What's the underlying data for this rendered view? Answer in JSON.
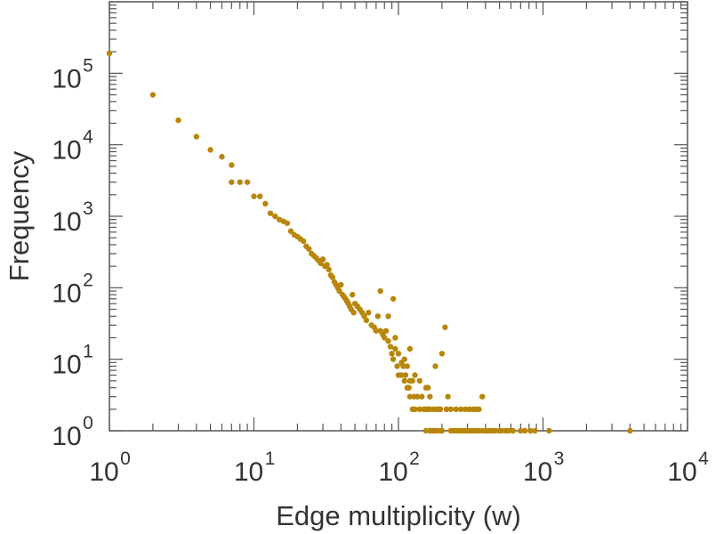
{
  "chart_data": {
    "type": "scatter",
    "xlabel": "Edge multiplicity (w)",
    "ylabel": "Frequency",
    "x_scale": "log",
    "y_scale": "log",
    "xlim": [
      1,
      10000
    ],
    "ylim": [
      1,
      1000000
    ],
    "x_tick_labels": [
      {
        "base": "10",
        "exp": "0"
      },
      {
        "base": "10",
        "exp": "1"
      },
      {
        "base": "10",
        "exp": "2"
      },
      {
        "base": "10",
        "exp": "3"
      },
      {
        "base": "10",
        "exp": "4"
      }
    ],
    "y_tick_labels": [
      {
        "base": "10",
        "exp": "0"
      },
      {
        "base": "10",
        "exp": "1"
      },
      {
        "base": "10",
        "exp": "2"
      },
      {
        "base": "10",
        "exp": "3"
      },
      {
        "base": "10",
        "exp": "4"
      },
      {
        "base": "10",
        "exp": "5"
      }
    ],
    "grid": false,
    "marker_color": "#b8860b",
    "points": [
      [
        1,
        190000
      ],
      [
        2,
        50000
      ],
      [
        3,
        22000
      ],
      [
        4,
        13000
      ],
      [
        5,
        8500
      ],
      [
        6,
        6800
      ],
      [
        7,
        5200
      ],
      [
        8,
        3000
      ],
      [
        9,
        3000
      ],
      [
        10,
        1900
      ],
      [
        11,
        1900
      ],
      [
        12,
        1500
      ],
      [
        13,
        1100
      ],
      [
        14,
        1000
      ],
      [
        15,
        900
      ],
      [
        16,
        850
      ],
      [
        17,
        800
      ],
      [
        18,
        620
      ],
      [
        19,
        550
      ],
      [
        20,
        520
      ],
      [
        21,
        480
      ],
      [
        22,
        450
      ],
      [
        23,
        380
      ],
      [
        24,
        350
      ],
      [
        25,
        300
      ],
      [
        26,
        280
      ],
      [
        27,
        260
      ],
      [
        28,
        240
      ],
      [
        29,
        220
      ],
      [
        30,
        250
      ],
      [
        31,
        200
      ],
      [
        32,
        210
      ],
      [
        33,
        180
      ],
      [
        34,
        150
      ],
      [
        35,
        140
      ],
      [
        36,
        120
      ],
      [
        37,
        110
      ],
      [
        38,
        100
      ],
      [
        39,
        90
      ],
      [
        40,
        110
      ],
      [
        41,
        80
      ],
      [
        42,
        75
      ],
      [
        43,
        70
      ],
      [
        44,
        65
      ],
      [
        45,
        60
      ],
      [
        46,
        55
      ],
      [
        47,
        50
      ],
      [
        48,
        80
      ],
      [
        49,
        45
      ],
      [
        50,
        60
      ],
      [
        52,
        55
      ],
      [
        54,
        50
      ],
      [
        56,
        45
      ],
      [
        58,
        40
      ],
      [
        60,
        35
      ],
      [
        62,
        45
      ],
      [
        65,
        30
      ],
      [
        68,
        28
      ],
      [
        70,
        25
      ],
      [
        72,
        40
      ],
      [
        75,
        25
      ],
      [
        78,
        22
      ],
      [
        80,
        20
      ],
      [
        82,
        25
      ],
      [
        85,
        18
      ],
      [
        88,
        15
      ],
      [
        90,
        12
      ],
      [
        92,
        10
      ],
      [
        95,
        20
      ],
      [
        98,
        8
      ],
      [
        100,
        6
      ],
      [
        100,
        12
      ],
      [
        105,
        6
      ],
      [
        108,
        8
      ],
      [
        110,
        5
      ],
      [
        112,
        6
      ],
      [
        115,
        4
      ],
      [
        118,
        4
      ],
      [
        120,
        3
      ],
      [
        120,
        5
      ],
      [
        125,
        2
      ],
      [
        128,
        3
      ],
      [
        130,
        2
      ],
      [
        135,
        3
      ],
      [
        140,
        2
      ],
      [
        145,
        3
      ],
      [
        150,
        2
      ],
      [
        155,
        4
      ],
      [
        160,
        2
      ],
      [
        165,
        3
      ],
      [
        170,
        1
      ],
      [
        180,
        1
      ],
      [
        190,
        2
      ],
      [
        200,
        1
      ],
      [
        210,
        28
      ],
      [
        215,
        2
      ],
      [
        220,
        3
      ],
      [
        240,
        1
      ],
      [
        260,
        1
      ],
      [
        280,
        1
      ],
      [
        300,
        1
      ],
      [
        320,
        1
      ],
      [
        350,
        1
      ],
      [
        380,
        3
      ],
      [
        410,
        1
      ],
      [
        450,
        1
      ],
      [
        500,
        1
      ],
      [
        580,
        1
      ],
      [
        620,
        1
      ],
      [
        700,
        1
      ],
      [
        750,
        1
      ],
      [
        820,
        1
      ],
      [
        880,
        1
      ],
      [
        1100,
        1
      ],
      [
        4000,
        1
      ],
      [
        7,
        3000
      ],
      [
        75,
        90
      ],
      [
        85,
        40
      ],
      [
        92,
        70
      ],
      [
        95,
        14
      ],
      [
        105,
        9
      ],
      [
        110,
        10
      ],
      [
        115,
        8
      ],
      [
        120,
        14
      ],
      [
        125,
        5
      ],
      [
        130,
        6
      ],
      [
        140,
        5
      ],
      [
        160,
        4
      ],
      [
        180,
        8
      ],
      [
        200,
        12
      ],
      [
        150,
        2
      ],
      [
        155,
        2
      ],
      [
        165,
        2
      ],
      [
        175,
        2
      ],
      [
        185,
        2
      ],
      [
        195,
        2
      ],
      [
        230,
        2
      ],
      [
        250,
        2
      ],
      [
        270,
        2
      ],
      [
        290,
        2
      ],
      [
        310,
        2
      ],
      [
        330,
        2
      ],
      [
        345,
        2
      ],
      [
        360,
        2
      ],
      [
        155,
        1
      ],
      [
        165,
        1
      ],
      [
        175,
        1
      ],
      [
        185,
        1
      ],
      [
        195,
        1
      ],
      [
        230,
        1
      ],
      [
        250,
        1
      ],
      [
        270,
        1
      ],
      [
        290,
        1
      ],
      [
        310,
        1
      ],
      [
        330,
        1
      ],
      [
        345,
        1
      ],
      [
        360,
        1
      ],
      [
        380,
        1
      ],
      [
        400,
        1
      ],
      [
        430,
        1
      ],
      [
        470,
        1
      ],
      [
        520,
        1
      ],
      [
        550,
        1
      ]
    ]
  }
}
